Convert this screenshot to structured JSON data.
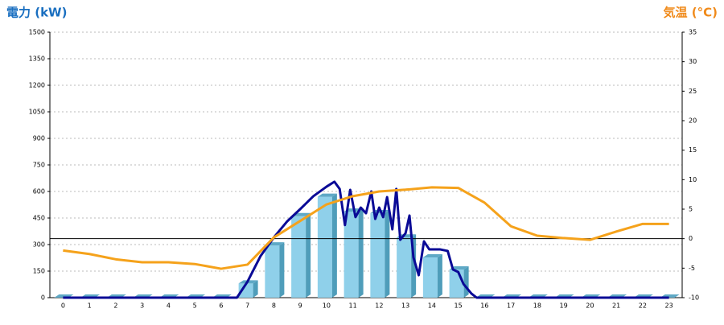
{
  "chart_data": {
    "type": "combo",
    "y_title": "電力 (kW)",
    "y2_title": "気温 (°C)",
    "categories": [
      "0",
      "1",
      "2",
      "3",
      "4",
      "5",
      "6",
      "7",
      "8",
      "9",
      "10",
      "11",
      "12",
      "13",
      "14",
      "15",
      "16",
      "17",
      "18",
      "19",
      "20",
      "21",
      "22",
      "23"
    ],
    "ylim": [
      0,
      1500
    ],
    "yticks": [
      0,
      150,
      300,
      450,
      600,
      750,
      900,
      1050,
      1200,
      1350,
      1500
    ],
    "y2lim": [
      -10,
      35
    ],
    "y2ticks": [
      -10,
      -5,
      0,
      5,
      10,
      15,
      20,
      25,
      30,
      35
    ],
    "grid": true,
    "y2_refline": 0,
    "series": [
      {
        "type": "bar",
        "color": "#8fd0ea",
        "values": [
          0,
          0,
          0,
          0,
          0,
          0,
          0,
          80,
          295,
          460,
          570,
          486,
          477,
          340,
          227,
          159,
          0,
          0,
          0,
          0,
          0,
          0,
          0,
          0
        ]
      },
      {
        "type": "line",
        "color": "#0a0a96",
        "x": [
          0,
          6.6,
          7,
          7.5,
          8,
          8.5,
          9,
          9.5,
          10,
          10.3,
          10.5,
          10.7,
          10.9,
          11.1,
          11.3,
          11.5,
          11.7,
          11.85,
          12,
          12.15,
          12.3,
          12.5,
          12.65,
          12.8,
          13,
          13.15,
          13.3,
          13.5,
          13.7,
          13.9,
          14.3,
          14.6,
          14.8,
          15,
          15.2,
          15.5,
          15.7,
          23
        ],
        "values": [
          0,
          0,
          90,
          236,
          340,
          430,
          500,
          573,
          627,
          655,
          614,
          410,
          609,
          455,
          509,
          477,
          600,
          445,
          509,
          455,
          568,
          386,
          614,
          327,
          364,
          464,
          227,
          127,
          318,
          273,
          273,
          264,
          159,
          145,
          77,
          23,
          0,
          0
        ]
      },
      {
        "type": "line",
        "axis": "y2",
        "color": "#f5a21b",
        "values": [
          -2,
          -2.6,
          -3.5,
          -4,
          -4,
          -4.3,
          -5.1,
          -4.4,
          0.2,
          3,
          5.8,
          7.2,
          8,
          8.3,
          8.7,
          8.6,
          6.1,
          2.1,
          0.5,
          0.1,
          -0.2,
          1.2,
          2.5,
          2.5
        ]
      }
    ]
  }
}
